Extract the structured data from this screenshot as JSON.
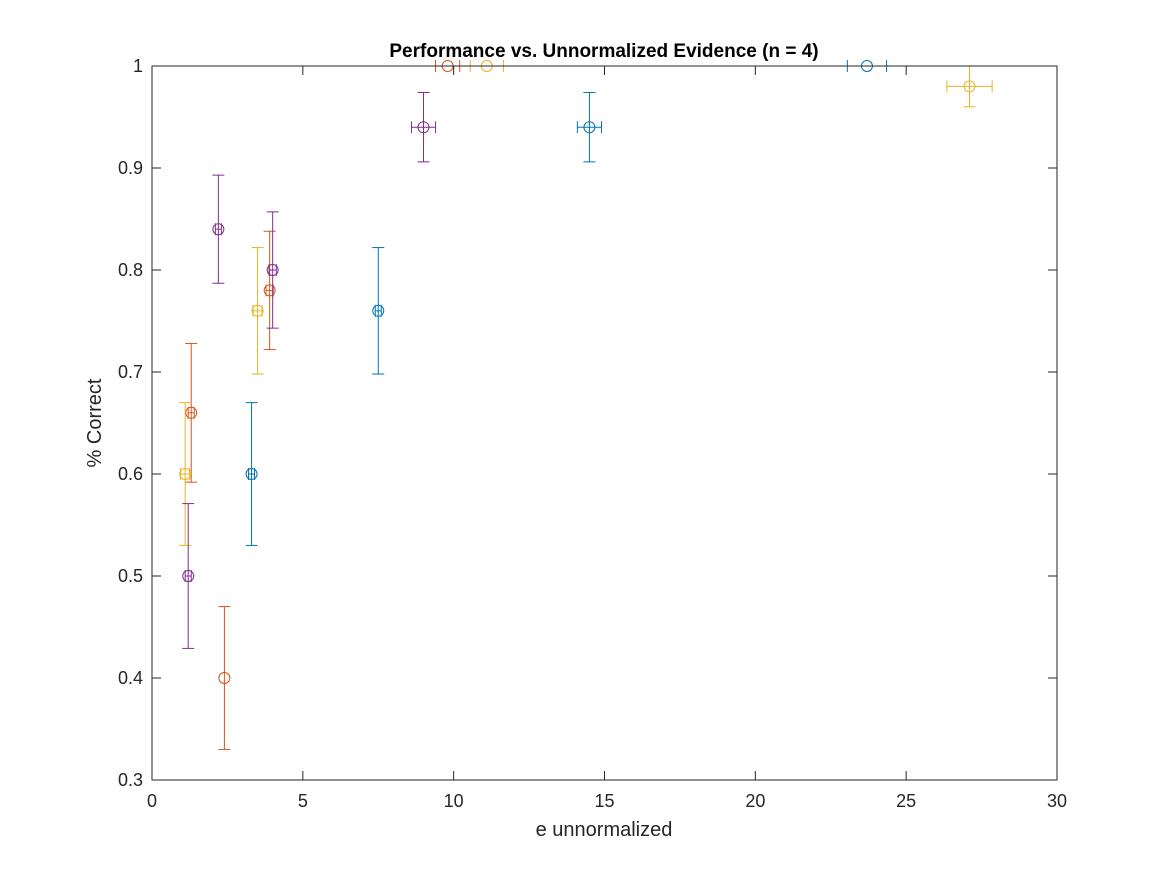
{
  "chart_data": {
    "type": "scatter",
    "title": "Performance vs. Unnormalized Evidence (n = 4)",
    "xlabel": "e unnormalized",
    "ylabel": "% Correct",
    "xlim": [
      0,
      30
    ],
    "ylim": [
      0.3,
      1
    ],
    "xticks": [
      "0",
      "5",
      "10",
      "15",
      "20",
      "25",
      "30"
    ],
    "yticks": [
      "0.3",
      "0.4",
      "0.5",
      "0.6",
      "0.7",
      "0.8",
      "0.9",
      "1"
    ],
    "xtick_values": [
      0,
      5,
      10,
      15,
      20,
      25,
      30
    ],
    "ytick_values": [
      0.3,
      0.4,
      0.5,
      0.6,
      0.7,
      0.8,
      0.9,
      1.0
    ],
    "grid": false,
    "marker": "circle-open",
    "series": [
      {
        "color": "#0072BD",
        "points": [
          {
            "x": 3.3,
            "y": 0.6,
            "yerr": 0.07,
            "xerr": 0.1
          },
          {
            "x": 7.5,
            "y": 0.76,
            "yerr": 0.062,
            "xerr": 0.1
          },
          {
            "x": 14.5,
            "y": 0.94,
            "yerr": 0.034,
            "xerr": 0.4
          },
          {
            "x": 23.7,
            "y": 1.0,
            "yerr": 0.0,
            "xerr": 0.65
          }
        ]
      },
      {
        "color": "#D95319",
        "points": [
          {
            "x": 1.3,
            "y": 0.66,
            "yerr": 0.068,
            "xerr": 0.1
          },
          {
            "x": 2.4,
            "y": 0.4,
            "yerr": 0.07,
            "xerr": 0.0
          },
          {
            "x": 3.9,
            "y": 0.78,
            "yerr": 0.058,
            "xerr": 0.12
          },
          {
            "x": 9.8,
            "y": 1.0,
            "yerr": 0.0,
            "xerr": 0.4
          }
        ]
      },
      {
        "color": "#EDB120",
        "points": [
          {
            "x": 1.1,
            "y": 0.6,
            "yerr": 0.07,
            "xerr": 0.15
          },
          {
            "x": 3.5,
            "y": 0.76,
            "yerr": 0.062,
            "xerr": 0.15
          },
          {
            "x": 11.1,
            "y": 1.0,
            "yerr": 0.0,
            "xerr": 0.55
          },
          {
            "x": 27.1,
            "y": 0.98,
            "yerr": 0.02,
            "xerr": 0.75
          }
        ]
      },
      {
        "color": "#7E2F8E",
        "points": [
          {
            "x": 1.2,
            "y": 0.5,
            "yerr": 0.071,
            "xerr": 0.1
          },
          {
            "x": 2.2,
            "y": 0.84,
            "yerr": 0.053,
            "xerr": 0.1
          },
          {
            "x": 4.0,
            "y": 0.8,
            "yerr": 0.057,
            "xerr": 0.12
          },
          {
            "x": 9.0,
            "y": 0.94,
            "yerr": 0.034,
            "xerr": 0.4
          }
        ]
      }
    ]
  }
}
